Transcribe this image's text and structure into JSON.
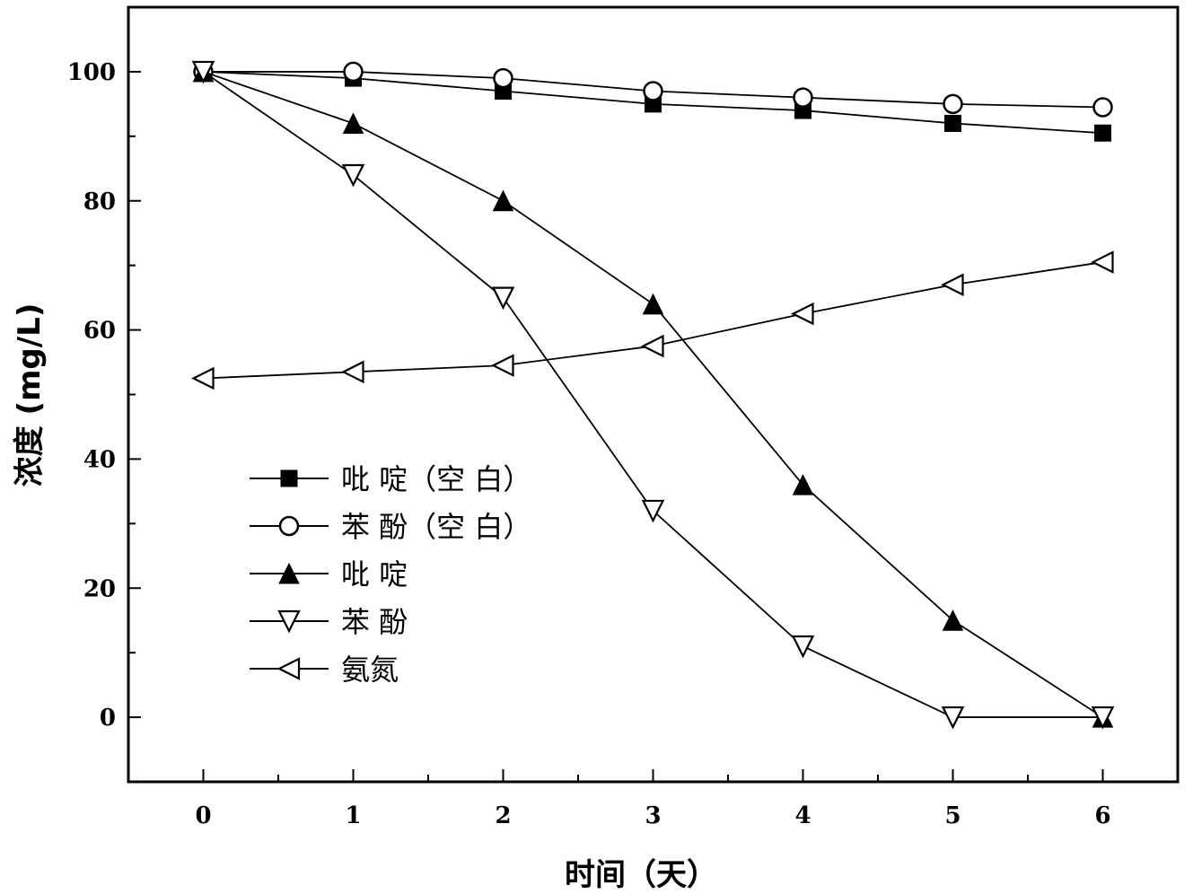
{
  "chart_data": {
    "type": "line",
    "xlabel": "时间（天）",
    "ylabel": "浓度 (mg/L)",
    "x": [
      0,
      1,
      2,
      3,
      4,
      5,
      6
    ],
    "xlim": [
      -0.5,
      6.5
    ],
    "ylim": [
      -10,
      110
    ],
    "x_ticks": [
      "0",
      "1",
      "2",
      "3",
      "4",
      "5",
      "6"
    ],
    "y_ticks": [
      "0",
      "20",
      "40",
      "60",
      "80",
      "100"
    ],
    "legend_position": "lower-left",
    "grid": false,
    "series": [
      {
        "name": "吡 啶（空 白）",
        "marker": "square-filled",
        "values": [
          100,
          99,
          97,
          95,
          94,
          92,
          90.5
        ]
      },
      {
        "name": "苯 酚（空 白）",
        "marker": "circle-open",
        "values": [
          100,
          100,
          99,
          97,
          96,
          95,
          94.5
        ]
      },
      {
        "name": "吡 啶",
        "marker": "triangle-up-filled",
        "values": [
          100,
          92,
          80,
          64,
          36,
          15,
          0
        ]
      },
      {
        "name": "苯 酚",
        "marker": "triangle-down-open",
        "values": [
          100,
          84,
          65,
          32,
          11,
          0,
          0
        ]
      },
      {
        "name": "氨氮",
        "marker": "triangle-left-open",
        "values": [
          52.5,
          53.5,
          54.5,
          57.5,
          62.5,
          67,
          70.5
        ]
      }
    ]
  }
}
